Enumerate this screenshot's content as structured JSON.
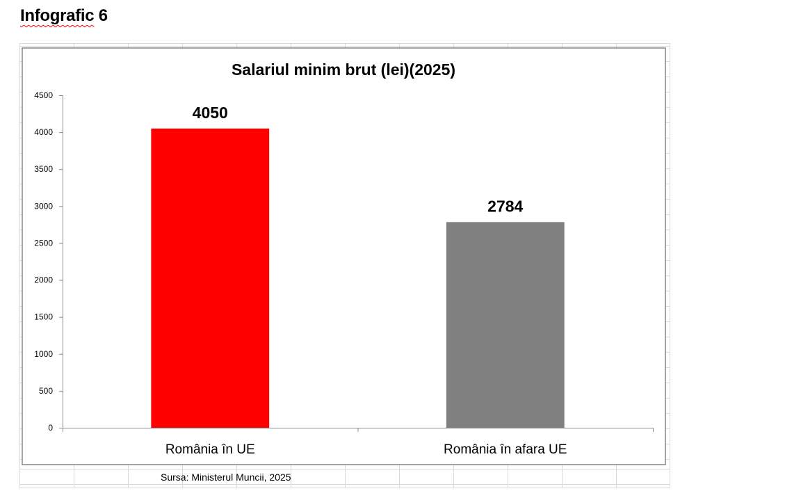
{
  "page": {
    "heading_word": "Infografic",
    "heading_number": "6",
    "source": "Sursa: Ministerul Muncii, 2025"
  },
  "colors": {
    "bar_in_eu": "#ff0000",
    "bar_outside_eu": "#808080",
    "axis": "#8c8c8c",
    "grid_cells": "#d9d9d9",
    "chart_border": "#868686"
  },
  "chart_data": {
    "type": "bar",
    "title": "Salariul minim brut (lei)(2025)",
    "categories": [
      "România în UE",
      "România în afara UE"
    ],
    "values": [
      4050,
      2784
    ],
    "bar_colors": [
      "#ff0000",
      "#808080"
    ],
    "data_labels": [
      "4050",
      "2784"
    ],
    "ylim": [
      0,
      4500
    ],
    "yticks": [
      0,
      500,
      1000,
      1500,
      2000,
      2500,
      3000,
      3500,
      4000,
      4500
    ],
    "xlabel": "",
    "ylabel": "",
    "grid": false,
    "legend": "none"
  }
}
